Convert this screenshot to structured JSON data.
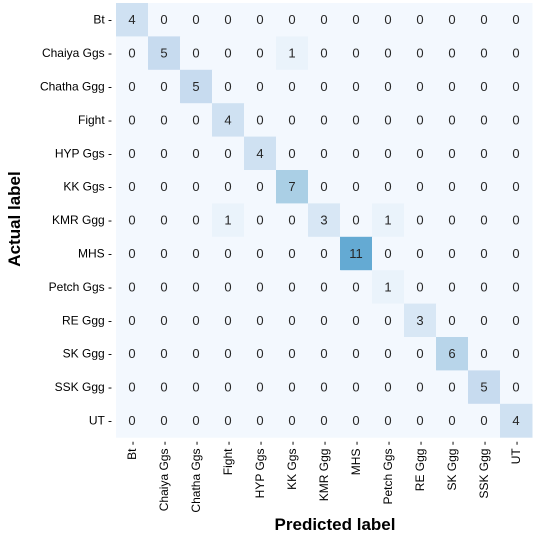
{
  "chart_data": {
    "type": "heatmap",
    "title": "",
    "xlabel": "Predicted label",
    "ylabel": "Actual label",
    "x_categories": [
      "Bt",
      "Chaiya Ggs",
      "Chatha Ggs",
      "Fight",
      "HYP Ggs",
      "KK Ggs",
      "KMR Ggg",
      "MHS",
      "Petch Ggs",
      "RE Ggg",
      "SK Ggg",
      "SSK Ggg",
      "UT"
    ],
    "y_categories": [
      "Bt",
      "Chaiya Ggs",
      "Chatha Ggg",
      "Fight",
      "HYP Ggs",
      "KK Ggs",
      "KMR Ggg",
      "MHS",
      "Petch Ggs",
      "RE Ggg",
      "SK Ggg",
      "SSK Ggg",
      "UT"
    ],
    "values": [
      [
        4,
        0,
        0,
        0,
        0,
        0,
        0,
        0,
        0,
        0,
        0,
        0,
        0
      ],
      [
        0,
        5,
        0,
        0,
        0,
        1,
        0,
        0,
        0,
        0,
        0,
        0,
        0
      ],
      [
        0,
        0,
        5,
        0,
        0,
        0,
        0,
        0,
        0,
        0,
        0,
        0,
        0
      ],
      [
        0,
        0,
        0,
        4,
        0,
        0,
        0,
        0,
        0,
        0,
        0,
        0,
        0
      ],
      [
        0,
        0,
        0,
        0,
        4,
        0,
        0,
        0,
        0,
        0,
        0,
        0,
        0
      ],
      [
        0,
        0,
        0,
        0,
        0,
        7,
        0,
        0,
        0,
        0,
        0,
        0,
        0
      ],
      [
        0,
        0,
        0,
        1,
        0,
        0,
        3,
        0,
        1,
        0,
        0,
        0,
        0
      ],
      [
        0,
        0,
        0,
        0,
        0,
        0,
        0,
        11,
        0,
        0,
        0,
        0,
        0
      ],
      [
        0,
        0,
        0,
        0,
        0,
        0,
        0,
        0,
        1,
        0,
        0,
        0,
        0
      ],
      [
        0,
        0,
        0,
        0,
        0,
        0,
        0,
        0,
        0,
        3,
        0,
        0,
        0
      ],
      [
        0,
        0,
        0,
        0,
        0,
        0,
        0,
        0,
        0,
        0,
        6,
        0,
        0
      ],
      [
        0,
        0,
        0,
        0,
        0,
        0,
        0,
        0,
        0,
        0,
        0,
        5,
        0
      ],
      [
        0,
        0,
        0,
        0,
        0,
        0,
        0,
        0,
        0,
        0,
        0,
        0,
        4
      ]
    ],
    "colormap": "Blues",
    "colors": {
      "low": "#f7fbff",
      "high": "#08306b"
    },
    "vmin": 0,
    "vmax": 11,
    "grid": false,
    "legend": "none"
  }
}
